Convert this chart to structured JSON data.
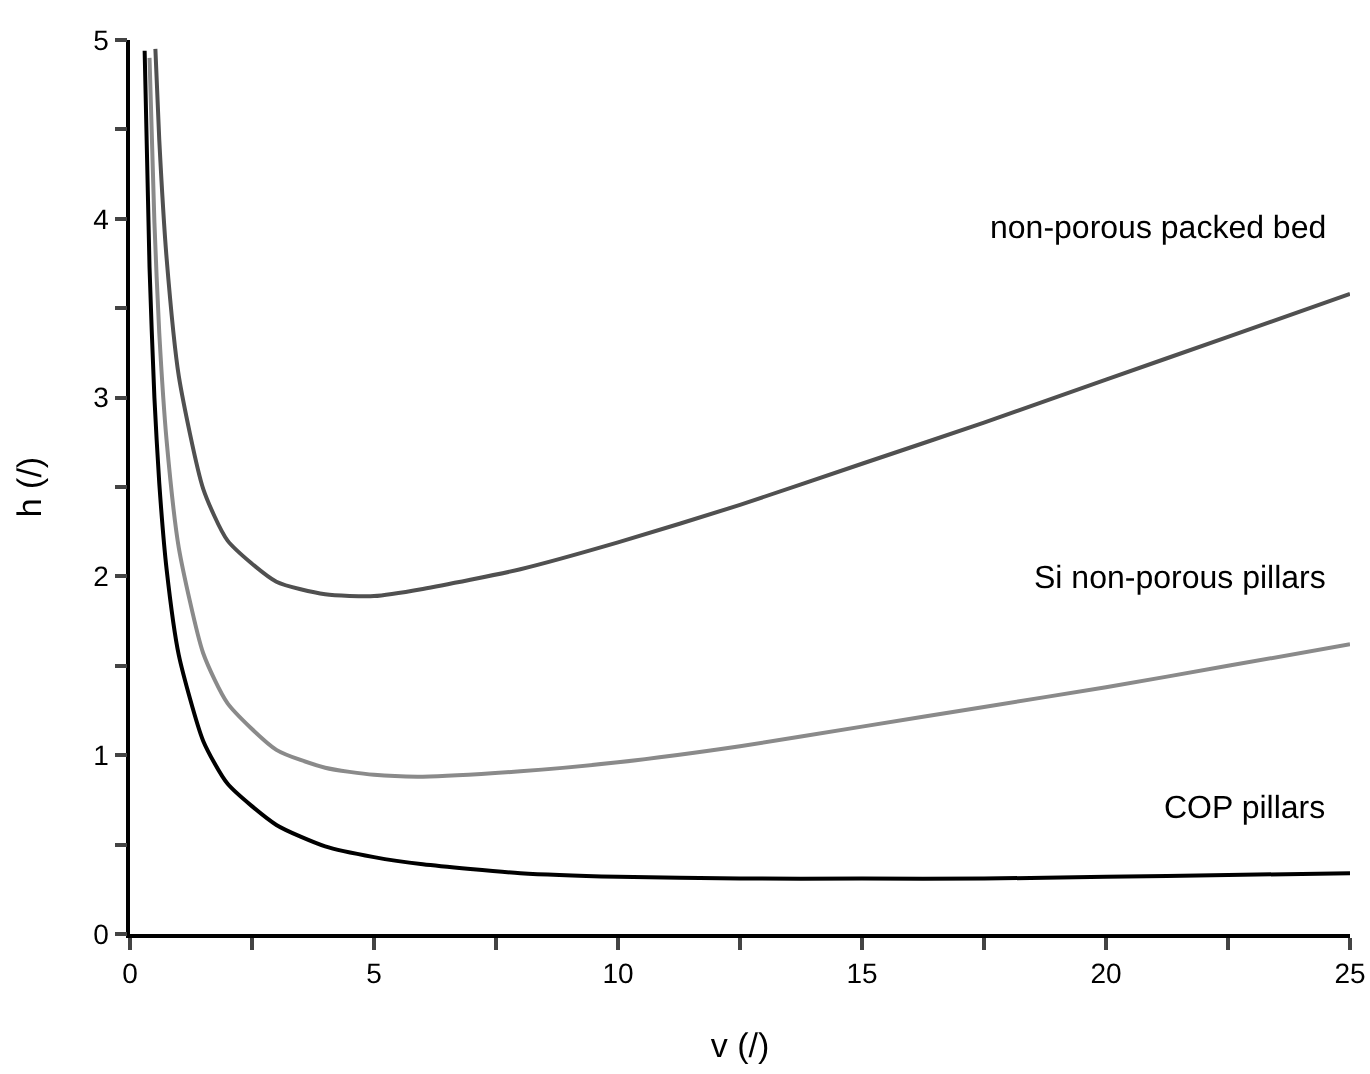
{
  "chart_data": {
    "type": "line",
    "xlabel": "v (/)",
    "ylabel": "h (/)",
    "xlim": [
      0,
      25
    ],
    "ylim": [
      0,
      5
    ],
    "xticks": [
      0,
      {
        "value": 2.5,
        "label": null
      },
      5,
      {
        "value": 7.5,
        "label": null
      },
      10,
      {
        "value": 12.5,
        "label": null
      },
      15,
      {
        "value": 17.5,
        "label": null
      },
      20,
      {
        "value": 22.5,
        "label": null
      },
      25
    ],
    "yticks": [
      0,
      {
        "value": 0.5,
        "label": null
      },
      1,
      {
        "value": 1.5,
        "label": null
      },
      2,
      {
        "value": 2.5,
        "label": null
      },
      3,
      {
        "value": 3.5,
        "label": null
      },
      4,
      {
        "value": 4.5,
        "label": null
      },
      5
    ],
    "grid": false,
    "legend": false,
    "marker": "none",
    "line_style": "solid",
    "series": [
      {
        "name": "non-porous packed bed",
        "color": "#505050",
        "x": [
          0.52,
          0.6,
          0.75,
          1,
          1.5,
          2,
          3,
          4,
          5,
          6,
          8,
          10,
          12.5,
          15,
          17.5,
          20,
          22.5,
          25
        ],
        "values": [
          4.95,
          4.44,
          3.78,
          3.12,
          2.49,
          2.2,
          1.97,
          1.9,
          1.89,
          1.93,
          2.04,
          2.19,
          2.4,
          2.63,
          2.86,
          3.1,
          3.34,
          3.58
        ]
      },
      {
        "name": "Si non-porous pillars",
        "color": "#8a8a8a",
        "x": [
          0.4,
          0.5,
          0.6,
          0.75,
          1,
          1.5,
          2,
          3,
          4,
          5,
          6,
          8,
          10,
          12.5,
          15,
          17.5,
          20,
          22.5,
          25
        ],
        "values": [
          4.9,
          3.98,
          3.36,
          2.76,
          2.16,
          1.57,
          1.29,
          1.03,
          0.93,
          0.89,
          0.88,
          0.91,
          0.96,
          1.05,
          1.16,
          1.27,
          1.38,
          1.5,
          1.62
        ]
      },
      {
        "name": "COP pillars",
        "color": "#000000",
        "x": [
          0.3,
          0.4,
          0.5,
          0.6,
          0.75,
          1,
          1.5,
          2,
          3,
          4,
          5,
          6,
          8,
          10,
          12.5,
          15,
          17.5,
          20,
          22.5,
          25
        ],
        "values": [
          4.94,
          3.73,
          3.0,
          2.52,
          2.04,
          1.56,
          1.08,
          0.84,
          0.61,
          0.49,
          0.43,
          0.39,
          0.34,
          0.32,
          0.31,
          0.31,
          0.31,
          0.32,
          0.33,
          0.34
        ]
      }
    ]
  }
}
